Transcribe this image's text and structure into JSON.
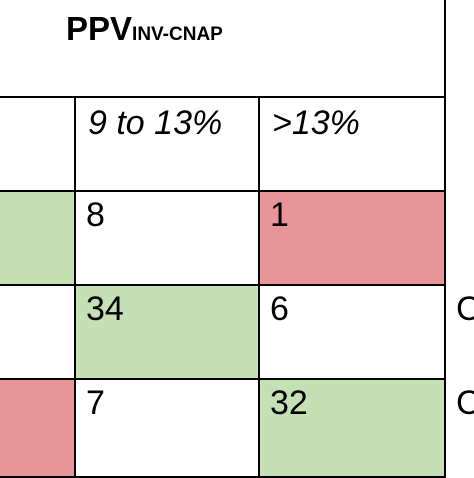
{
  "table": {
    "title_main": "PPV",
    "title_sub": "INV-CNAP",
    "headers": [
      "",
      "9 to 13%",
      ">13%"
    ],
    "rows": [
      {
        "cells": [
          "",
          "8",
          "1"
        ],
        "edge": ""
      },
      {
        "cells": [
          "",
          "34",
          "6"
        ],
        "edge": "C"
      },
      {
        "cells": [
          "",
          "7",
          "32"
        ],
        "edge": "C"
      }
    ],
    "colors": {
      "green": "#c5e0b4",
      "red": "#e89597",
      "border": "#000000"
    }
  }
}
